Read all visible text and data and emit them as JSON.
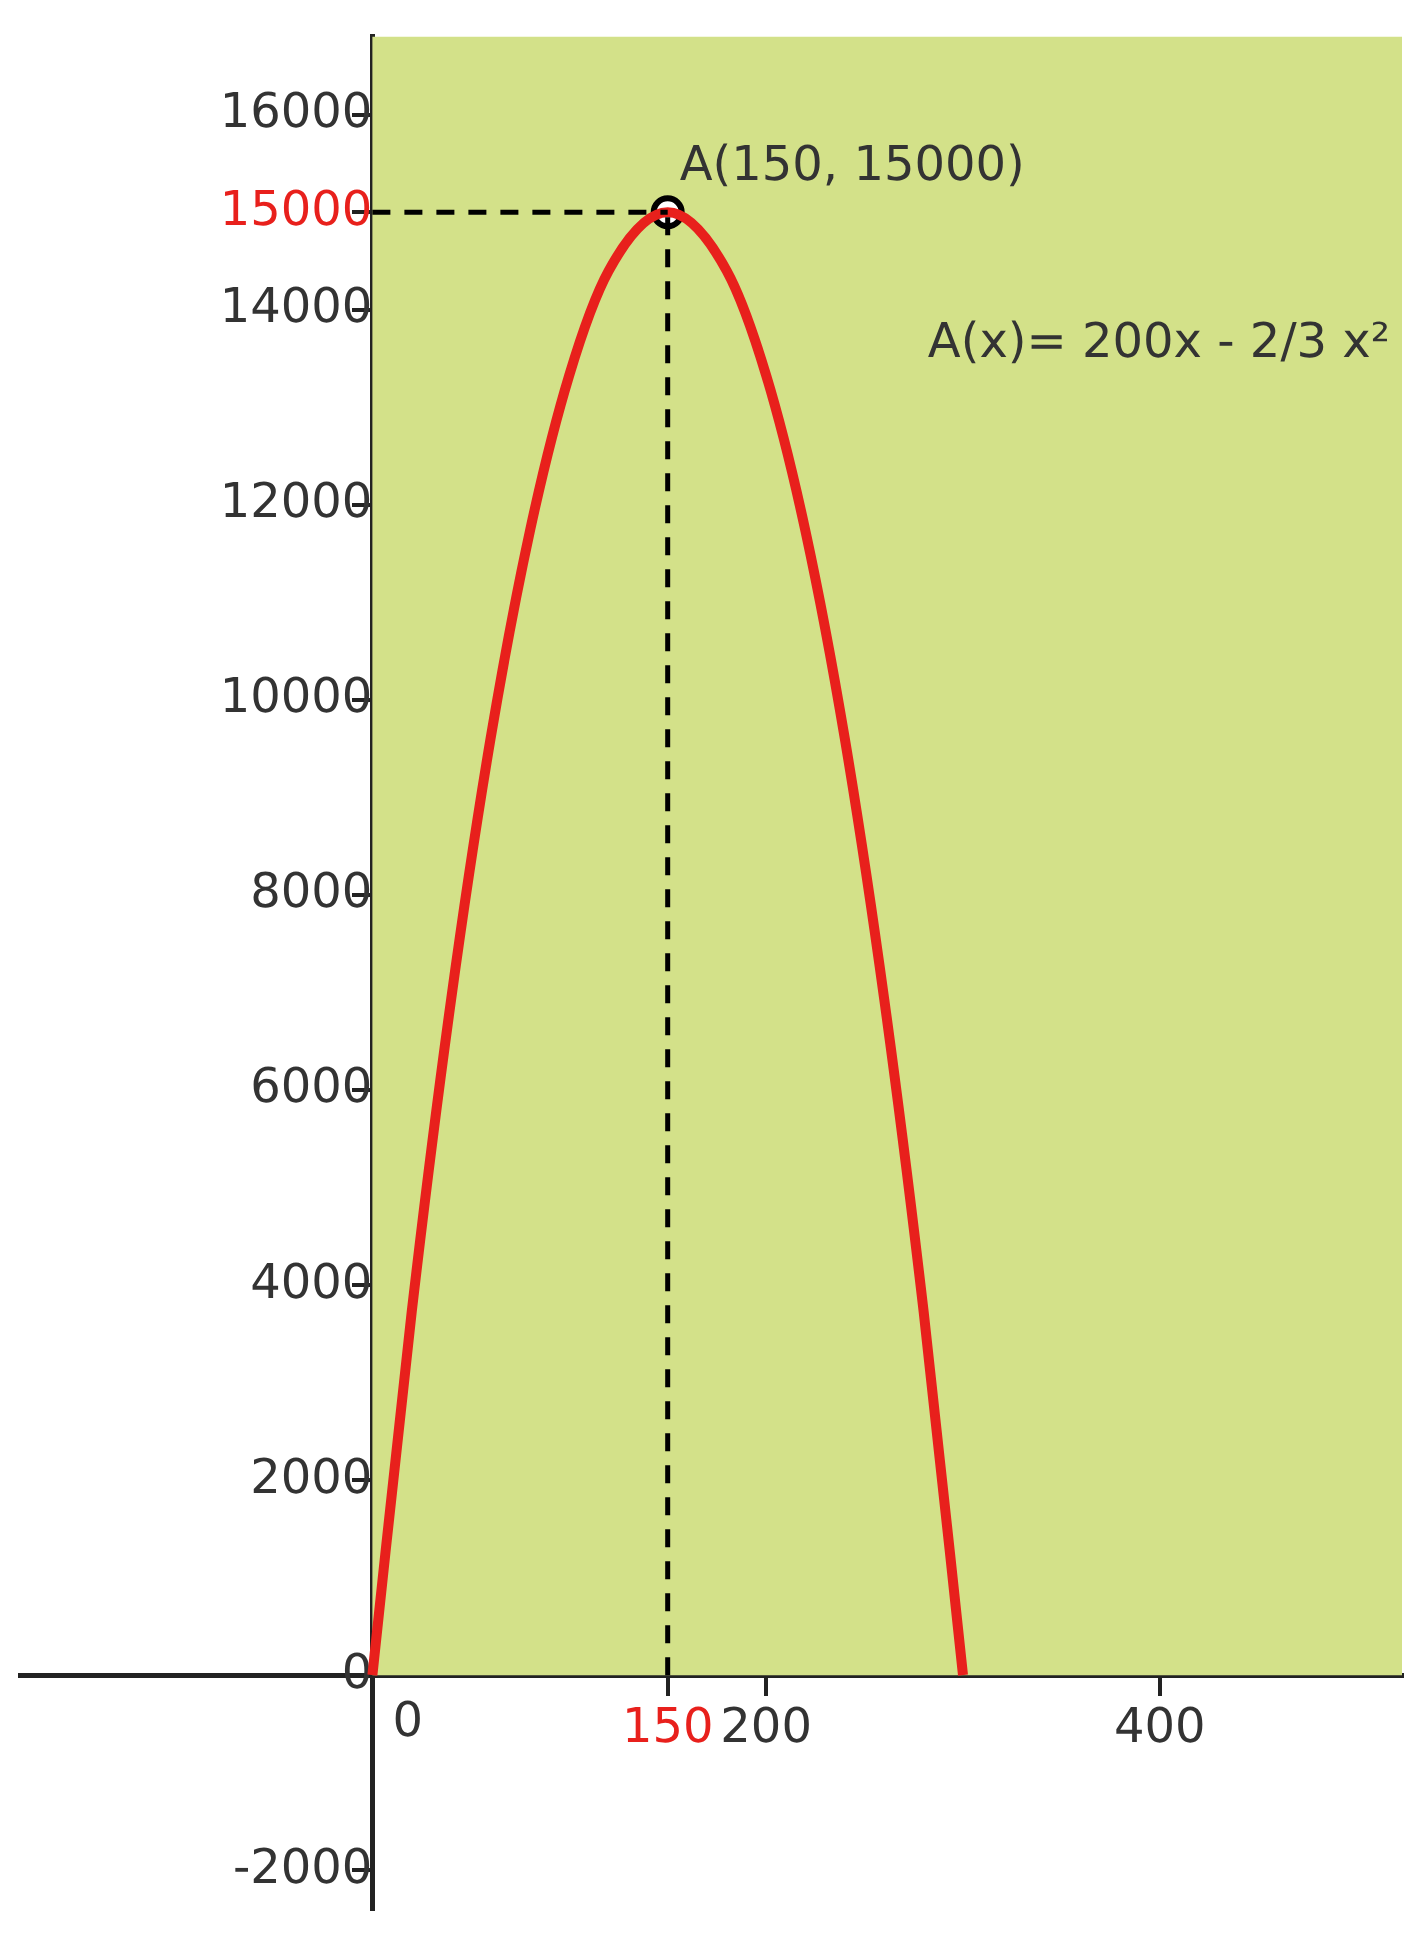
{
  "chart_data": {
    "type": "line",
    "x": [
      0,
      20,
      40,
      60,
      80,
      100,
      120,
      150,
      180,
      200,
      220,
      240,
      260,
      280,
      300
    ],
    "series": [
      {
        "color": "#e8201c",
        "values": [
          0,
          3730,
          6930,
          9600,
          11730,
          13330,
          14400,
          15000,
          14400,
          13330,
          11730,
          9600,
          6930,
          3730,
          0
        ],
        "marker": "none"
      },
      {
        "type": "scatter",
        "color": "#000000",
        "x": [
          150
        ],
        "values": [
          15000
        ],
        "marker": "circle"
      }
    ],
    "xlim": [
      -179,
      523
    ],
    "ylim": [
      -2400,
      16800
    ],
    "xticks": [
      0,
      150,
      200,
      400
    ],
    "yticks": [
      -2000,
      0,
      2000,
      4000,
      6000,
      8000,
      10000,
      12000,
      14000,
      15000,
      16000
    ],
    "ref_lines": [
      {
        "axis": "x",
        "value": 150,
        "line_style": "dashed",
        "color": "#000000"
      },
      {
        "axis": "y",
        "value": 15000,
        "line_style": "dashed",
        "color": "#000000"
      }
    ],
    "bands": [
      {
        "axis": "y",
        "from": 0,
        "to": 16800,
        "color": "#d3e189"
      }
    ],
    "annotations": [
      {
        "text": "A(150, 15000)",
        "x": 150,
        "y": 15000
      },
      "A(x)= 200x - 2/3 x²"
    ],
    "grid": false,
    "legend": false
  }
}
